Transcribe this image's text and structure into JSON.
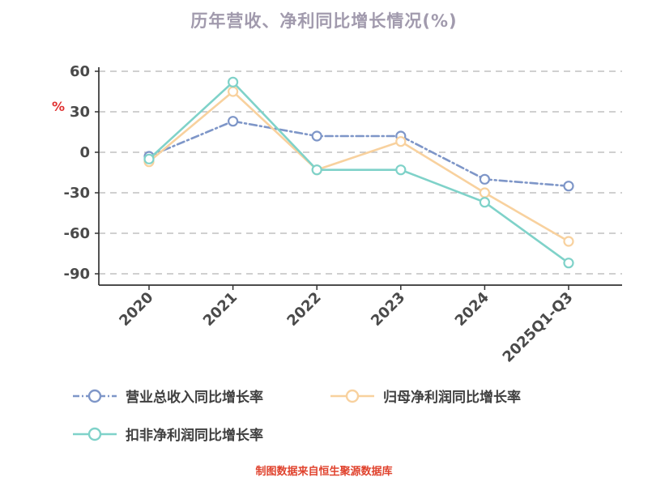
{
  "title": "历年营收、净利同比增长情况(%)",
  "footer": "制图数据来自恒生聚源数据库",
  "y_axis_unit": "%",
  "colors": {
    "title": "#a19aad",
    "axis": "#333333",
    "axis_text": "#4a4a4a",
    "grid": "#b4b4b4",
    "unit_red": "#e03131",
    "footer_red": "#e0432e",
    "legend_text": "#3f3f3f"
  },
  "chart_data": {
    "type": "line",
    "title": "历年营收、净利同比增长情况(%)",
    "categories": [
      "2020",
      "2021",
      "2022",
      "2023",
      "2024",
      "2025Q1-Q3"
    ],
    "series": [
      {
        "key": "revenue",
        "name": "营业总收入同比增长率",
        "color": "#7e96c8",
        "line_style": "dash-dot",
        "values": [
          -3,
          23,
          12,
          12,
          -20,
          -25
        ]
      },
      {
        "key": "net-profit",
        "name": "归母净利润同比增长率",
        "color": "#f8d19e",
        "line_style": "solid",
        "values": [
          -7,
          45,
          -13,
          8,
          -30,
          -66
        ]
      },
      {
        "key": "non-recurring-net-profit",
        "name": "扣非净利润同比增长率",
        "color": "#7fd2c9",
        "line_style": "solid",
        "values": [
          -5,
          52,
          -13,
          -13,
          -37,
          -82
        ]
      }
    ],
    "xlabel": "",
    "ylabel": "%",
    "ylim": [
      -90,
      60
    ],
    "yticks": [
      60,
      30,
      0,
      -30,
      -60,
      -90
    ],
    "grid": "horizontal-dashed",
    "legend_position": "bottom-left",
    "marker": "open-circle"
  }
}
